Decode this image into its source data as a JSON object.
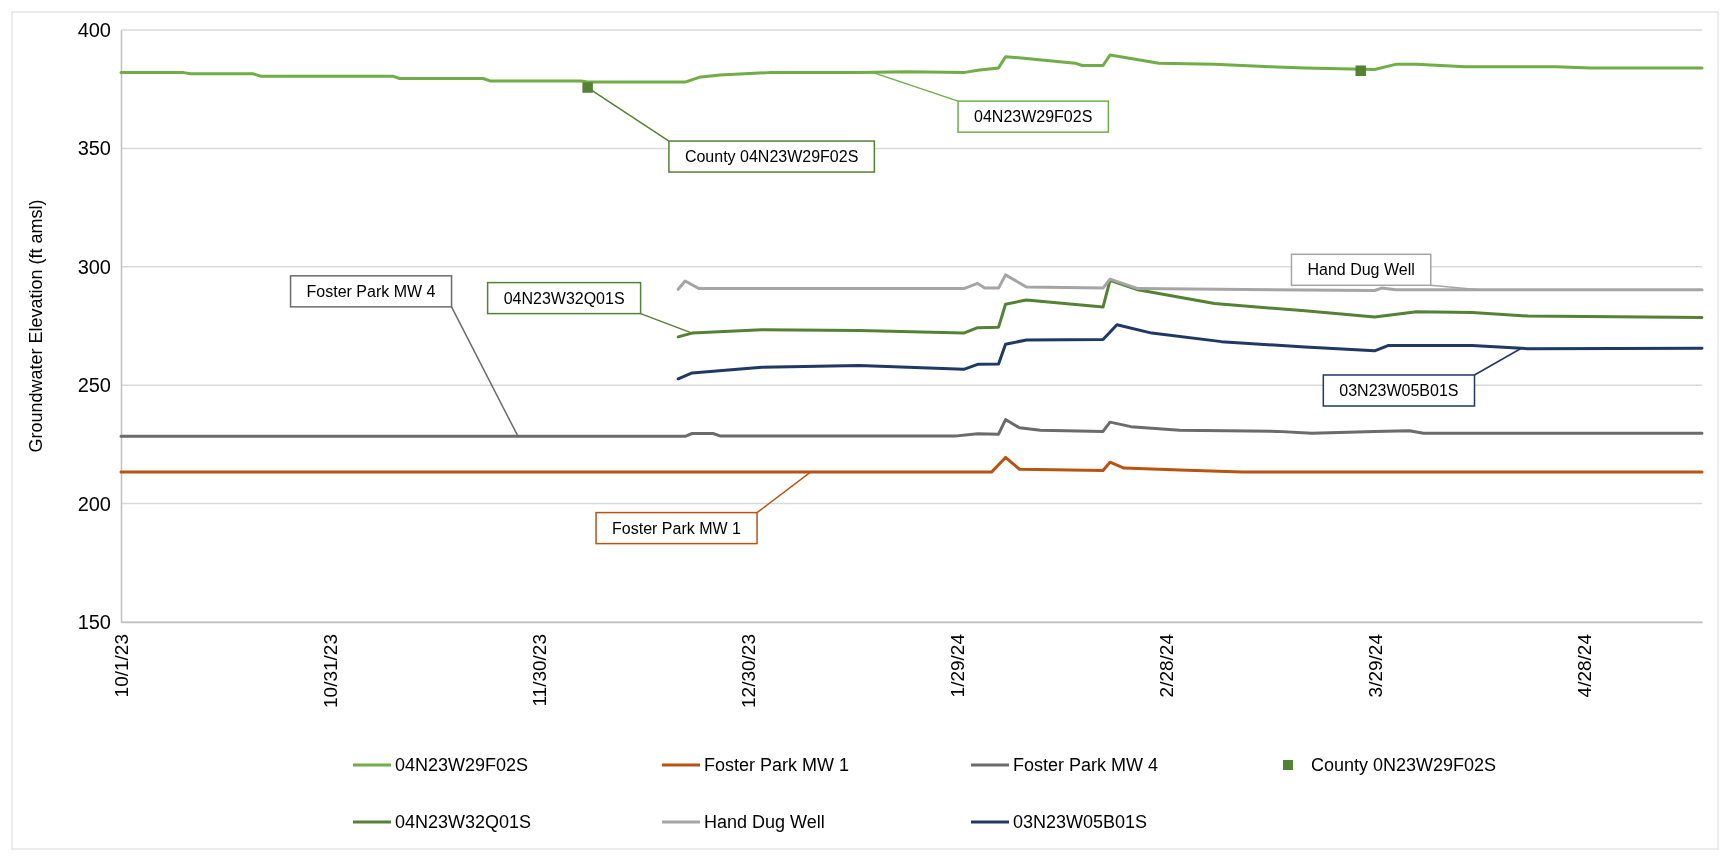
{
  "chart_data": {
    "type": "line",
    "ylabel": "Groundwater Elevation (ft amsl)",
    "xlim": [
      "2023-10-01",
      "2024-05-15"
    ],
    "xticks": [
      {
        "value": "2023-10-01",
        "label": "10/1/23"
      },
      {
        "value": "2023-10-31",
        "label": "10/31/23"
      },
      {
        "value": "2023-11-30",
        "label": "11/30/23"
      },
      {
        "value": "2023-12-30",
        "label": "12/30/23"
      },
      {
        "value": "2024-01-29",
        "label": "1/29/24"
      },
      {
        "value": "2024-02-28",
        "label": "2/28/24"
      },
      {
        "value": "2024-03-29",
        "label": "3/29/24"
      },
      {
        "value": "2024-04-28",
        "label": "4/28/24"
      }
    ],
    "ylim": [
      150,
      400
    ],
    "yticks": [
      150,
      200,
      250,
      300,
      350,
      400
    ],
    "grid": "y",
    "legend": "bottom",
    "series": [
      {
        "name": "04N23W29F02S",
        "color": "#70ad47",
        "x": [
          "2023-10-01",
          "2023-10-10",
          "2023-10-11",
          "2023-10-20",
          "2023-10-21",
          "2023-11-09",
          "2023-11-10",
          "2023-11-22",
          "2023-11-23",
          "2023-12-06",
          "2023-12-07",
          "2023-12-21",
          "2023-12-23",
          "2023-12-26",
          "2024-01-02",
          "2024-01-15",
          "2024-01-22",
          "2024-01-30",
          "2024-02-01",
          "2024-02-04",
          "2024-02-05",
          "2024-02-08",
          "2024-02-15",
          "2024-02-16",
          "2024-02-19",
          "2024-02-20",
          "2024-02-23",
          "2024-02-27",
          "2024-03-06",
          "2024-03-14",
          "2024-03-19",
          "2024-03-29",
          "2024-04-01",
          "2024-04-04",
          "2024-04-11",
          "2024-04-24",
          "2024-04-29",
          "2024-05-15"
        ],
        "values": [
          382,
          382,
          381.5,
          381.5,
          380.5,
          380.5,
          379.5,
          379.5,
          378.5,
          378.5,
          378,
          378,
          380,
          381,
          382,
          382,
          382.4,
          382,
          383,
          384,
          388.7,
          388,
          386,
          385,
          385,
          389.4,
          388,
          386,
          385.5,
          384.5,
          384,
          383.3,
          385.5,
          385.5,
          384.5,
          384.5,
          384,
          384
        ]
      },
      {
        "name": "Foster Park MW 1",
        "color": "#b85412",
        "x": [
          "2023-10-01",
          "2024-02-03",
          "2024-02-05",
          "2024-02-07",
          "2024-02-19",
          "2024-02-20",
          "2024-02-22",
          "2024-03-01",
          "2024-03-10",
          "2024-05-15"
        ],
        "values": [
          213.3,
          213.3,
          219.5,
          214.5,
          214,
          217.5,
          215,
          214.2,
          213.3,
          213.3
        ]
      },
      {
        "name": "Foster Park MW 4",
        "color": "#6b6b6b",
        "x": [
          "2023-10-01",
          "2023-12-21",
          "2023-12-22",
          "2023-12-25",
          "2023-12-26",
          "2024-01-29",
          "2024-02-01",
          "2024-02-04",
          "2024-02-05",
          "2024-02-07",
          "2024-02-10",
          "2024-02-19",
          "2024-02-20",
          "2024-02-23",
          "2024-03-01",
          "2024-03-15",
          "2024-03-20",
          "2024-03-29",
          "2024-04-03",
          "2024-04-05",
          "2024-05-15"
        ],
        "values": [
          228.4,
          228.4,
          229.6,
          229.6,
          228.6,
          228.6,
          229.5,
          229.3,
          235.5,
          232,
          231,
          230.5,
          234.4,
          232.5,
          231,
          230.5,
          229.7,
          230.5,
          230.8,
          229.7,
          229.7
        ]
      },
      {
        "name": "County 0N23W29F02S",
        "type": "scatter",
        "marker": "square",
        "color": "#548235",
        "x": [
          "2023-12-07",
          "2024-03-27"
        ],
        "values": [
          375.7,
          382.8
        ]
      },
      {
        "name": "04N23W32Q01S",
        "color": "#548235",
        "x": [
          "2023-12-20",
          "2023-12-22",
          "2024-01-01",
          "2024-01-15",
          "2024-01-30",
          "2024-02-01",
          "2024-02-04",
          "2024-02-05",
          "2024-02-08",
          "2024-02-19",
          "2024-02-20",
          "2024-02-24",
          "2024-03-06",
          "2024-03-19",
          "2024-03-29",
          "2024-04-04",
          "2024-04-12",
          "2024-04-20",
          "2024-05-15"
        ],
        "values": [
          270.4,
          272,
          273.4,
          273.1,
          272,
          274.3,
          274.5,
          284.2,
          286,
          283,
          294.3,
          290.3,
          284.5,
          281.4,
          278.8,
          281,
          280.7,
          279.2,
          278.6
        ]
      },
      {
        "name": "Hand Dug Well",
        "color": "#a5a5a5",
        "x": [
          "2023-12-20",
          "2023-12-21",
          "2023-12-23",
          "2024-01-30",
          "2024-02-01",
          "2024-02-02",
          "2024-02-04",
          "2024-02-05",
          "2024-02-08",
          "2024-02-19",
          "2024-02-20",
          "2024-02-24",
          "2024-03-29",
          "2024-03-30",
          "2024-04-01",
          "2024-05-15"
        ],
        "values": [
          290.5,
          294,
          290.8,
          290.8,
          293,
          291,
          291,
          296.6,
          291.5,
          291,
          294.8,
          290.8,
          290,
          291,
          290.3,
          290.3
        ]
      },
      {
        "name": "03N23W05B01S",
        "color": "#203864",
        "x": [
          "2023-12-20",
          "2023-12-22",
          "2024-01-01",
          "2024-01-15",
          "2024-01-30",
          "2024-02-01",
          "2024-02-04",
          "2024-02-05",
          "2024-02-08",
          "2024-02-19",
          "2024-02-21",
          "2024-02-26",
          "2024-03-07",
          "2024-03-19",
          "2024-03-29",
          "2024-03-31",
          "2024-04-12",
          "2024-04-20",
          "2024-05-15"
        ],
        "values": [
          252.7,
          255.2,
          257.6,
          258.3,
          256.7,
          258.8,
          259,
          267.3,
          269.1,
          269.3,
          275.5,
          272,
          268.4,
          266.1,
          264.5,
          266.8,
          266.8,
          265.4,
          265.6
        ]
      }
    ],
    "annotations": [
      {
        "text": "04N23W29F02S",
        "x": "2024-01-17",
        "y": 382
      },
      {
        "text": "County 04N23W29F02S",
        "x": "2023-12-07",
        "y": 375.7
      },
      {
        "text": "04N23W32Q01S",
        "x": "2023-12-22",
        "y": 272
      },
      {
        "text": "Hand Dug Well",
        "x": "2024-04-13",
        "y": 290.3
      },
      {
        "text": "Foster Park MW 4",
        "x": "2023-11-27",
        "y": 228.4
      },
      {
        "text": "03N23W05B01S",
        "x": "2024-04-19",
        "y": 265.5
      },
      {
        "text": "Foster Park MW 1",
        "x": "2024-01-08",
        "y": 213.3
      }
    ]
  }
}
